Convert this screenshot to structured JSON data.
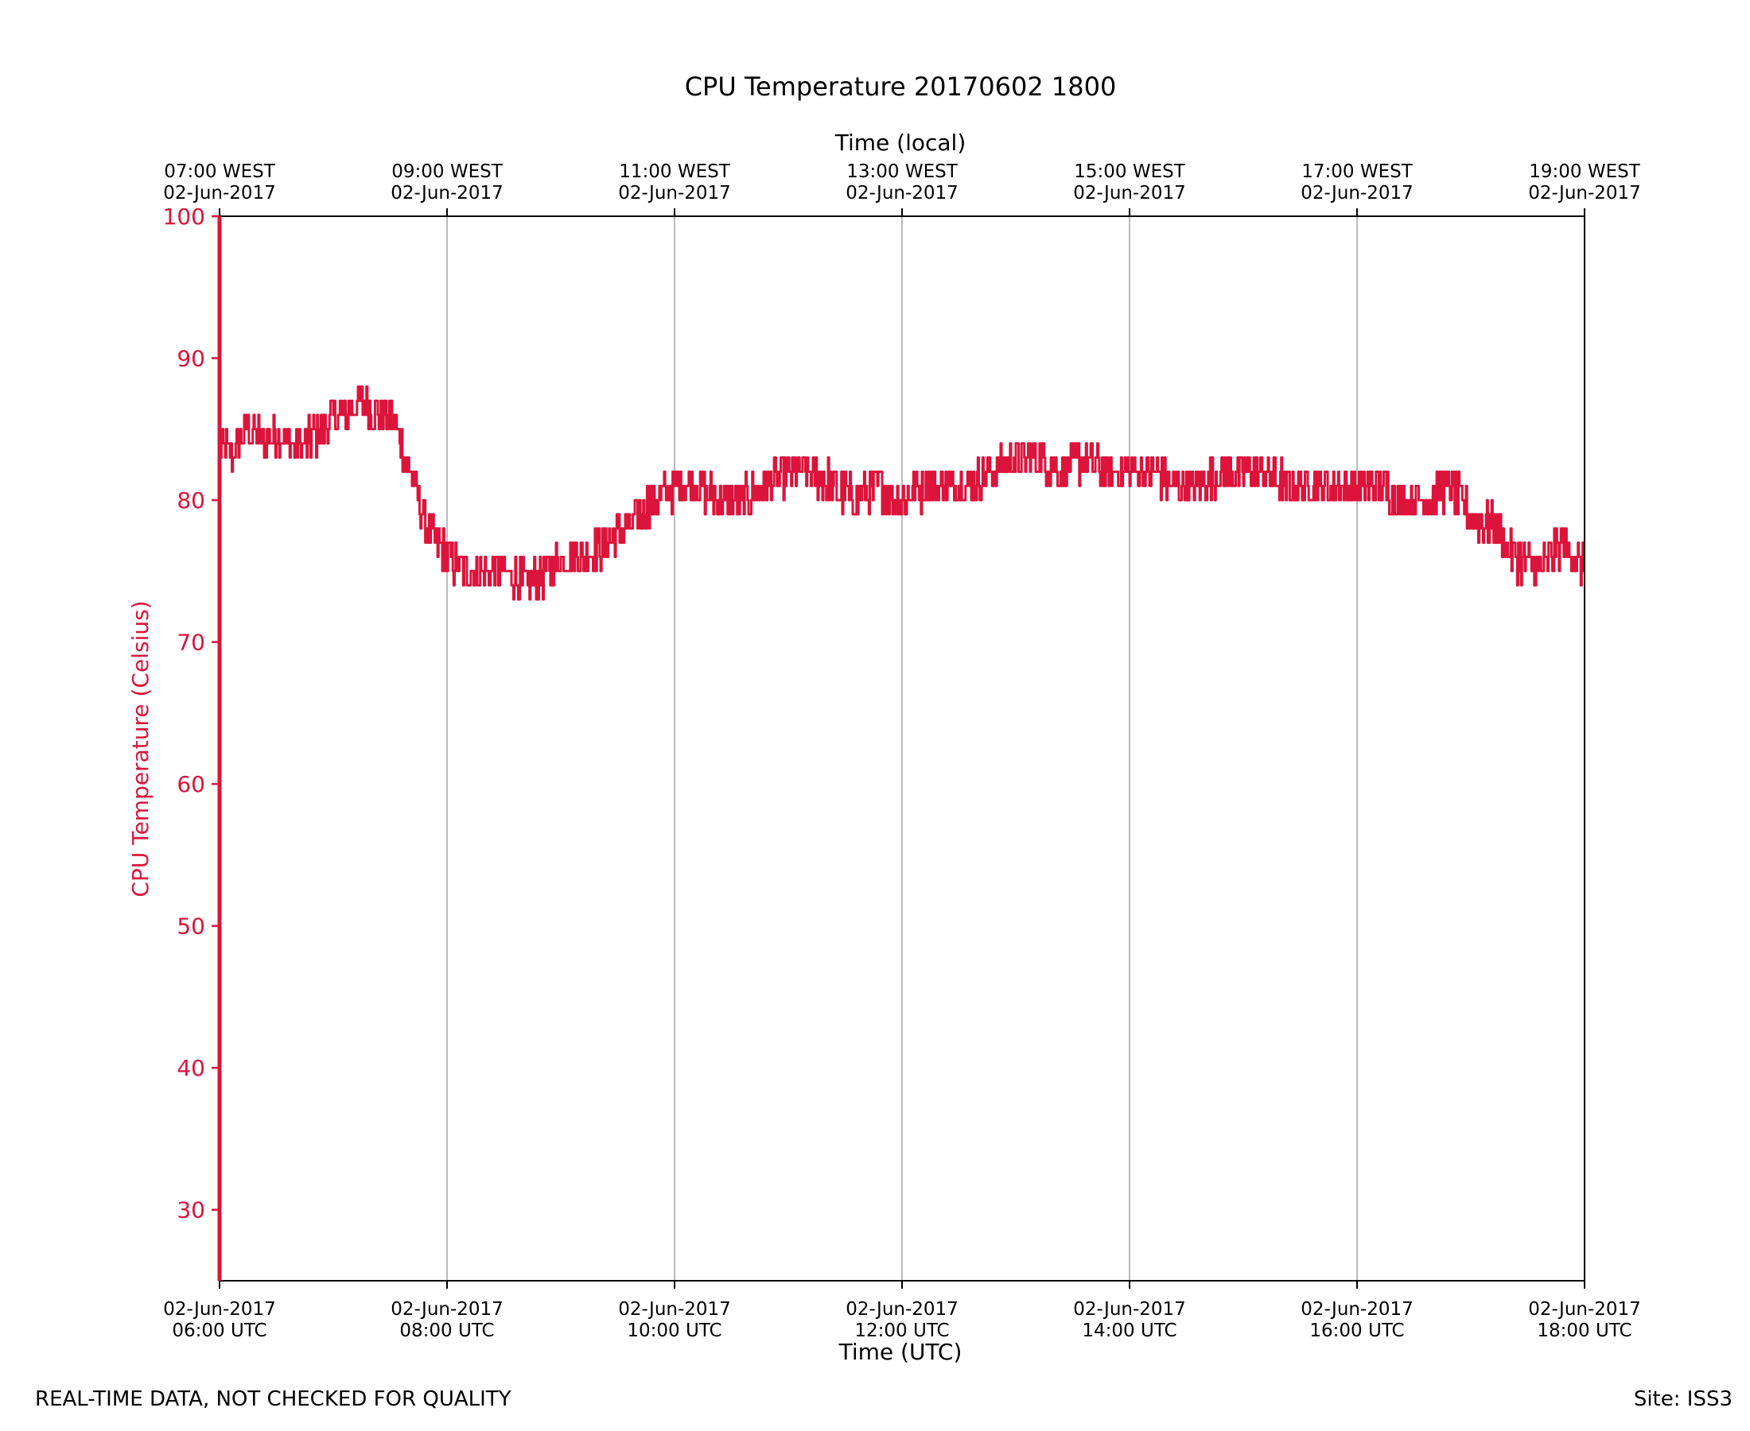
{
  "chart_data": {
    "type": "line",
    "title": "CPU Temperature 20170602 1800",
    "xlabel": "Time (UTC)",
    "x2label": "Time (local)",
    "ylabel": "CPU Temperature (Celsius)",
    "ylim": [
      25,
      100
    ],
    "xlim_hours": [
      6,
      18
    ],
    "y_ticks": [
      30,
      40,
      50,
      60,
      70,
      80,
      90,
      100
    ],
    "x_ticks": [
      {
        "hour": 6,
        "line1": "02-Jun-2017",
        "line2": "06:00 UTC"
      },
      {
        "hour": 8,
        "line1": "02-Jun-2017",
        "line2": "08:00 UTC"
      },
      {
        "hour": 10,
        "line1": "02-Jun-2017",
        "line2": "10:00 UTC"
      },
      {
        "hour": 12,
        "line1": "02-Jun-2017",
        "line2": "12:00 UTC"
      },
      {
        "hour": 14,
        "line1": "02-Jun-2017",
        "line2": "14:00 UTC"
      },
      {
        "hour": 16,
        "line1": "02-Jun-2017",
        "line2": "16:00 UTC"
      },
      {
        "hour": 18,
        "line1": "02-Jun-2017",
        "line2": "18:00 UTC"
      }
    ],
    "x2_ticks": [
      {
        "hour": 6,
        "line1": "07:00 WEST",
        "line2": "02-Jun-2017"
      },
      {
        "hour": 8,
        "line1": "09:00 WEST",
        "line2": "02-Jun-2017"
      },
      {
        "hour": 10,
        "line1": "11:00 WEST",
        "line2": "02-Jun-2017"
      },
      {
        "hour": 12,
        "line1": "13:00 WEST",
        "line2": "02-Jun-2017"
      },
      {
        "hour": 14,
        "line1": "15:00 WEST",
        "line2": "02-Jun-2017"
      },
      {
        "hour": 16,
        "line1": "17:00 WEST",
        "line2": "02-Jun-2017"
      },
      {
        "hour": 18,
        "line1": "19:00 WEST",
        "line2": "02-Jun-2017"
      }
    ],
    "vertical_grid": true,
    "series": [
      {
        "name": "CPU Temperature",
        "color": "#dc143c",
        "x_hours": [
          6.0,
          6.1,
          6.25,
          6.4,
          6.5,
          6.6,
          6.75,
          6.9,
          7.0,
          7.1,
          7.25,
          7.4,
          7.5,
          7.6,
          7.75,
          7.9,
          8.0,
          8.15,
          8.3,
          8.5,
          8.7,
          8.9,
          9.0,
          9.2,
          9.4,
          9.6,
          9.8,
          10.0,
          10.2,
          10.4,
          10.6,
          10.8,
          11.0,
          11.2,
          11.4,
          11.6,
          11.8,
          12.0,
          12.2,
          12.4,
          12.6,
          12.8,
          13.0,
          13.2,
          13.4,
          13.6,
          13.8,
          14.0,
          14.2,
          14.4,
          14.6,
          14.8,
          15.0,
          15.2,
          15.4,
          15.6,
          15.8,
          16.0,
          16.2,
          16.4,
          16.6,
          16.8,
          17.0,
          17.2,
          17.4,
          17.6,
          17.8,
          18.0
        ],
        "y_values": [
          84,
          83,
          85,
          84,
          85,
          84,
          84,
          85,
          86,
          86,
          87,
          86,
          86,
          84,
          80,
          77,
          76,
          75,
          75,
          75,
          74,
          75,
          76,
          76,
          77,
          78,
          80,
          81,
          81,
          80,
          80,
          81,
          82,
          82,
          81,
          80,
          81,
          80,
          81,
          81,
          81,
          82,
          83,
          83,
          82,
          83,
          82,
          82,
          82,
          81,
          81,
          82,
          82,
          82,
          81,
          81,
          81,
          81,
          81,
          80,
          80,
          81,
          79,
          78,
          76,
          75,
          77,
          75
        ],
        "noise_amplitude": 1.5
      }
    ]
  },
  "footer": {
    "left": "REAL-TIME DATA, NOT CHECKED FOR QUALITY",
    "right": "Site: ISS3"
  },
  "colors": {
    "series": "#dc143c",
    "axis_left": "#dc143c",
    "grid": "#aaaaaa",
    "text": "#000000"
  }
}
